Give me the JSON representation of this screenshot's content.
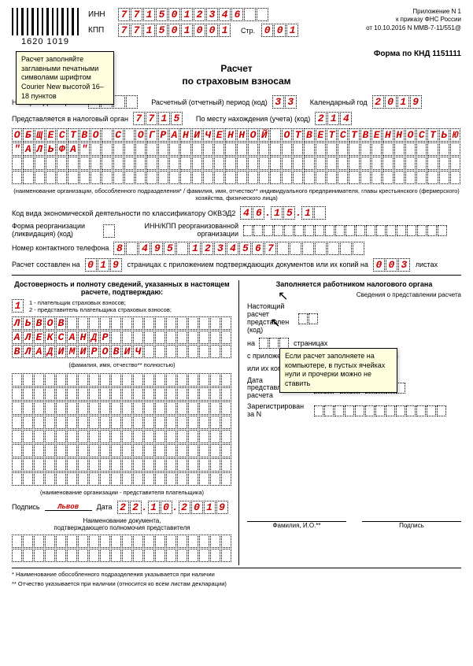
{
  "barcode_text": "1620 1019",
  "inn_label": "ИНН",
  "kpp_label": "КПП",
  "inn": [
    "7",
    "7",
    "1",
    "5",
    "0",
    "1",
    "2",
    "3",
    "4",
    "6",
    "",
    ""
  ],
  "kpp": [
    "7",
    "7",
    "1",
    "5",
    "0",
    "1",
    "0",
    "0",
    "1"
  ],
  "str_label": "Стр.",
  "str": [
    "0",
    "0",
    "1"
  ],
  "appendix": [
    "Приложение N 1",
    "к приказу ФНС России",
    "от 10.10.2016 N ММВ-7-11/551@"
  ],
  "note1": "Расчет заполняйте заглавными печатными символами шрифтом Courier New высотой 16–18 пунктов",
  "note2": "Если расчет заполняете на компьютере, в пустых ячейках нули и прочерки можно не ставить",
  "form_code": "Форма по КНД 1151111",
  "title": "Расчет\nпо страховым взносам",
  "corr_label": "Номер корректировки",
  "corr": [
    "0",
    "",
    "",
    ""
  ],
  "period_label": "Расчетный (отчетный) период (код)",
  "period": [
    "3",
    "3"
  ],
  "year_label": "Календарный год",
  "year": [
    "2",
    "0",
    "1",
    "9"
  ],
  "tax_org_label": "Представляется в налоговый орган",
  "tax_org": [
    "7",
    "7",
    "1",
    "5"
  ],
  "location_label": "По месту нахождения (учета) (код)",
  "location": [
    "2",
    "1",
    "4"
  ],
  "org_name_row1": [
    "О",
    "Б",
    "Щ",
    "Е",
    "С",
    "Т",
    "В",
    "О",
    "",
    "С",
    "",
    "О",
    "Г",
    "Р",
    "А",
    "Н",
    "И",
    "Ч",
    "Е",
    "Н",
    "Н",
    "О",
    "Й",
    "",
    "О",
    "Т",
    "В",
    "Е",
    "Т",
    "С",
    "Т",
    "В",
    "Е",
    "Н",
    "Н",
    "О",
    "С",
    "Т",
    "Ь",
    "Ю"
  ],
  "org_name_row2": [
    "\"",
    "А",
    "Л",
    "Ь",
    "Ф",
    "А",
    "\"",
    "",
    "",
    "",
    "",
    "",
    "",
    "",
    "",
    "",
    "",
    "",
    "",
    "",
    "",
    "",
    "",
    "",
    "",
    "",
    "",
    "",
    "",
    "",
    "",
    "",
    "",
    "",
    "",
    "",
    "",
    "",
    "",
    ""
  ],
  "org_name_row3": [
    "",
    "",
    "",
    "",
    "",
    "",
    "",
    "",
    "",
    "",
    "",
    "",
    "",
    "",
    "",
    "",
    "",
    "",
    "",
    "",
    "",
    "",
    "",
    "",
    "",
    "",
    "",
    "",
    "",
    "",
    "",
    "",
    "",
    "",
    "",
    "",
    "",
    "",
    "",
    ""
  ],
  "org_name_row4": [
    "",
    "",
    "",
    "",
    "",
    "",
    "",
    "",
    "",
    "",
    "",
    "",
    "",
    "",
    "",
    "",
    "",
    "",
    "",
    "",
    "",
    "",
    "",
    "",
    "",
    "",
    "",
    "",
    "",
    "",
    "",
    "",
    "",
    "",
    "",
    "",
    "",
    "",
    "",
    ""
  ],
  "org_name_note": "(наименование организации, обособленного подразделения* / фамилия, имя, отчество** индивидуального предпринимателя, главы крестьянского (фермерского) хозяйства, физического лица)",
  "okved_label": "Код вида экономической деятельности по классификатору ОКВЭД2",
  "okved": [
    "4",
    "6",
    ".",
    "1",
    "5",
    ".",
    "1",
    ""
  ],
  "reorg_label": "Форма реорганизации (ликвидация) (код)",
  "reorg_inn_label": "ИНН/КПП реорганизованной организации",
  "phone_label": "Номер контактного телефона",
  "phone": [
    "8",
    "",
    "4",
    "9",
    "5",
    "",
    "1",
    "2",
    "3",
    "4",
    "5",
    "6",
    "7",
    "",
    "",
    "",
    "",
    "",
    "",
    ""
  ],
  "pages_label1": "Расчет составлен на",
  "pages": [
    "0",
    "1",
    "9"
  ],
  "pages_label2": "страницах с приложением подтверждающих документов или их копий на",
  "copies": [
    "0",
    "0",
    "3"
  ],
  "pages_label3": "листах",
  "left_title": "Достоверность и полноту сведений, указанных в настоящем расчете, подтверждаю:",
  "confirm": [
    "1"
  ],
  "confirm_opts": "1 - плательщик страховых взносов;\n2 - представитель плательщика страховых взносов;",
  "fio_row1": [
    "Л",
    "Ь",
    "В",
    "О",
    "В",
    "",
    "",
    "",
    "",
    "",
    "",
    "",
    "",
    "",
    "",
    "",
    "",
    "",
    "",
    ""
  ],
  "fio_row2": [
    "А",
    "Л",
    "Е",
    "К",
    "С",
    "А",
    "Н",
    "Д",
    "Р",
    "",
    "",
    "",
    "",
    "",
    "",
    "",
    "",
    "",
    "",
    ""
  ],
  "fio_row3": [
    "В",
    "Л",
    "А",
    "Д",
    "И",
    "М",
    "И",
    "Р",
    "О",
    "В",
    "И",
    "Ч",
    "",
    "",
    "",
    "",
    "",
    "",
    "",
    ""
  ],
  "fio_note": "(фамилия, имя, отчество** полностью)",
  "org_rep_rows": 8,
  "org_rep_note": "(наименование организации - представителя плательщика)",
  "sign_label": "Подпись",
  "sign_value": "Львов",
  "date_label": "Дата",
  "date": [
    "2",
    "2",
    ".",
    "1",
    "0",
    ".",
    "2",
    "0",
    "1",
    "9"
  ],
  "doc_name_label": "Наименование документа,\nподтверждающего полномочия представителя",
  "right_title": "Заполняется работником налогового органа",
  "right_sub": "Сведения о представлении расчета",
  "right_code_label": "Настоящий расчет представлен (код)",
  "right_pages_label": "на",
  "right_pages_suffix": "страницах",
  "right_docs_label": "с приложением подтверждающих документов",
  "right_copies_label": "или их копий на",
  "right_sheets": "листах",
  "right_date_label": "Дата представления расчета",
  "right_reg_label": "Зарегистрирован за N",
  "right_fio": "Фамилия, И.О.**",
  "right_sign": "Подпись",
  "footnote1": "* Наименование обособленного подразделения указывается при наличии",
  "footnote2": "** Отчество указывается при наличии (относится ко всем листам декларации)"
}
